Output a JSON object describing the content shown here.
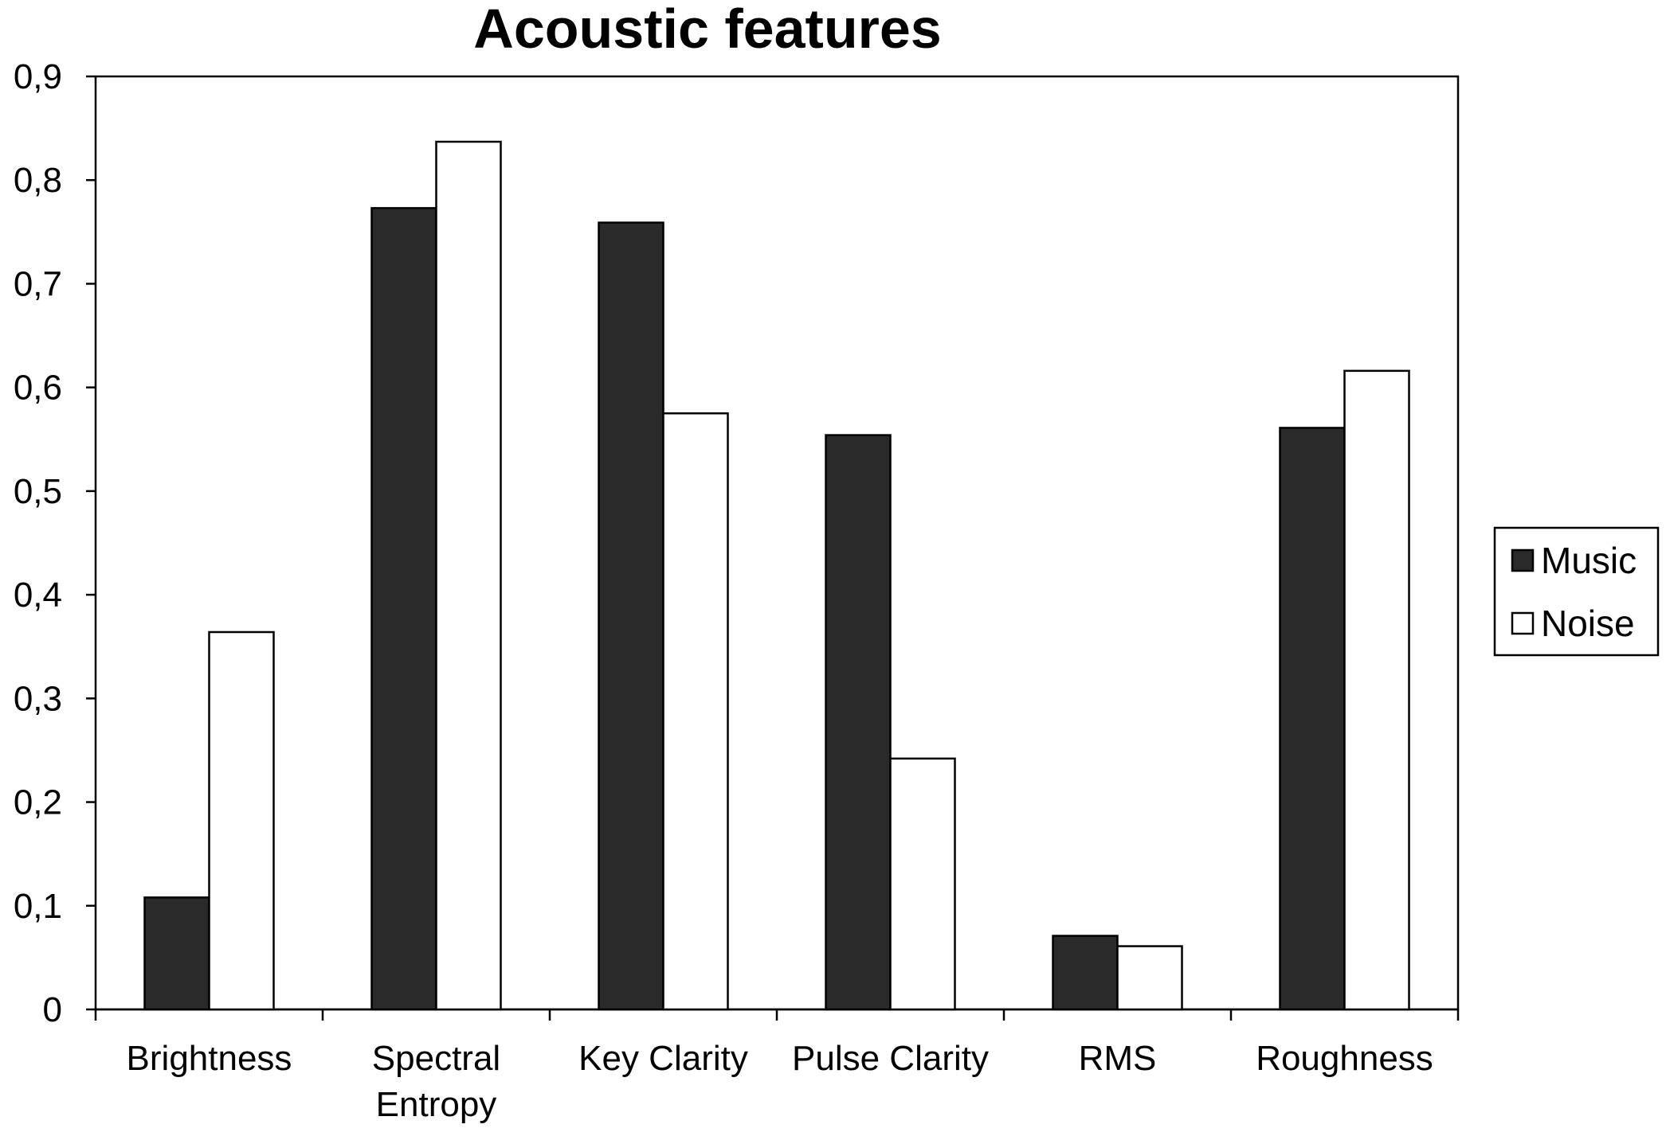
{
  "chart_data": {
    "type": "bar",
    "title": "Acoustic features",
    "xlabel": "",
    "ylabel": "",
    "ylim": [
      0,
      0.9
    ],
    "yticks": [
      {
        "value": 0,
        "label": "0"
      },
      {
        "value": 0.1,
        "label": "0,1"
      },
      {
        "value": 0.2,
        "label": "0,2"
      },
      {
        "value": 0.3,
        "label": "0,3"
      },
      {
        "value": 0.4,
        "label": "0,4"
      },
      {
        "value": 0.5,
        "label": "0,5"
      },
      {
        "value": 0.6,
        "label": "0,6"
      },
      {
        "value": 0.7,
        "label": "0,7"
      },
      {
        "value": 0.8,
        "label": "0,8"
      },
      {
        "value": 0.9,
        "label": "0,9"
      }
    ],
    "categories": [
      [
        "Brightness"
      ],
      [
        "Spectral",
        "Entropy"
      ],
      [
        "Key Clarity"
      ],
      [
        "Pulse Clarity"
      ],
      [
        "RMS"
      ],
      [
        "Roughness"
      ]
    ],
    "series": [
      {
        "name": "Music",
        "color": "#2a2a2a",
        "values": [
          0.108,
          0.773,
          0.759,
          0.554,
          0.071,
          0.561
        ]
      },
      {
        "name": "Noise",
        "color": "#ffffff",
        "values": [
          0.364,
          0.837,
          0.575,
          0.242,
          0.061,
          0.616
        ]
      }
    ],
    "grid": false,
    "legend_position": "right"
  }
}
